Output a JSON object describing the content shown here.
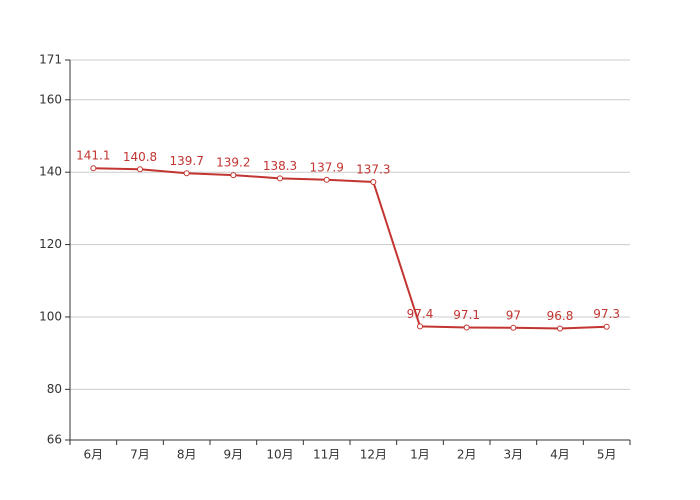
{
  "chart_data": {
    "type": "line",
    "categories": [
      "6月",
      "7月",
      "8月",
      "9月",
      "10月",
      "11月",
      "12月",
      "1月",
      "2月",
      "3月",
      "4月",
      "5月"
    ],
    "values": [
      141.1,
      140.8,
      139.7,
      139.2,
      138.3,
      137.9,
      137.3,
      97.4,
      97.1,
      97,
      96.8,
      97.3
    ],
    "color": "#c23531",
    "ylim": [
      66,
      171
    ],
    "yticks": [
      66,
      80,
      100,
      120,
      140,
      160,
      171
    ],
    "grid": true
  }
}
